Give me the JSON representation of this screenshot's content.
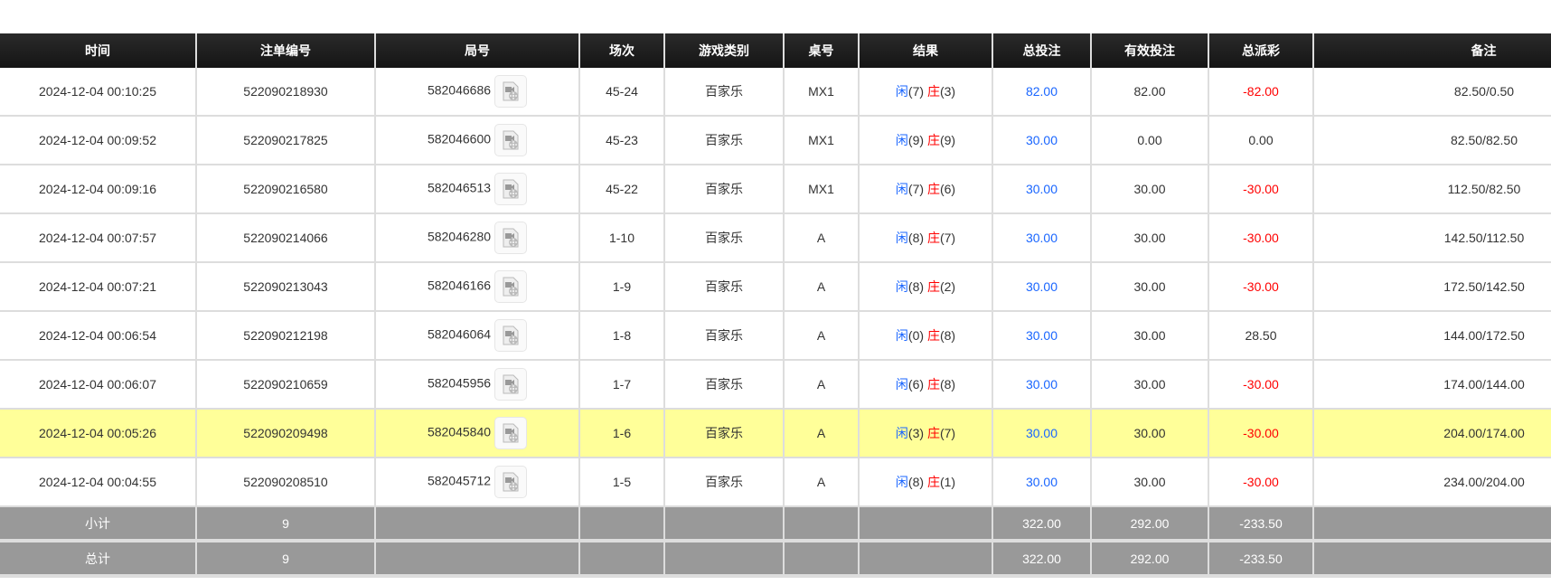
{
  "headers": [
    "时间",
    "注单编号",
    "局号",
    "场次",
    "游戏类别",
    "桌号",
    "结果",
    "总投注",
    "有效投注",
    "总派彩",
    "备注"
  ],
  "player_label": "闲",
  "banker_label": "庄",
  "colors": {
    "header_bg": "#1b1b1b",
    "highlight": "#ffff99",
    "footer_bg": "#999999",
    "blue": "#1a66ff",
    "red": "#ff0000"
  },
  "rows": [
    {
      "time": "2024-12-04 00:10:25",
      "bet_id": "522090218930",
      "round": "582046686",
      "session": "45-24",
      "game": "百家乐",
      "table": "MX1",
      "player": "(7)",
      "banker": "(3)",
      "total": "82.00",
      "valid": "82.00",
      "payout": "-82.00",
      "payout_neg": true,
      "remark": "82.50/0.50"
    },
    {
      "time": "2024-12-04 00:09:52",
      "bet_id": "522090217825",
      "round": "582046600",
      "session": "45-23",
      "game": "百家乐",
      "table": "MX1",
      "player": "(9)",
      "banker": "(9)",
      "total": "30.00",
      "valid": "0.00",
      "payout": "0.00",
      "payout_neg": false,
      "remark": "82.50/82.50"
    },
    {
      "time": "2024-12-04 00:09:16",
      "bet_id": "522090216580",
      "round": "582046513",
      "session": "45-22",
      "game": "百家乐",
      "table": "MX1",
      "player": "(7)",
      "banker": "(6)",
      "total": "30.00",
      "valid": "30.00",
      "payout": "-30.00",
      "payout_neg": true,
      "remark": "112.50/82.50"
    },
    {
      "time": "2024-12-04 00:07:57",
      "bet_id": "522090214066",
      "round": "582046280",
      "session": "1-10",
      "game": "百家乐",
      "table": "A",
      "player": "(8)",
      "banker": "(7)",
      "total": "30.00",
      "valid": "30.00",
      "payout": "-30.00",
      "payout_neg": true,
      "remark": "142.50/112.50"
    },
    {
      "time": "2024-12-04 00:07:21",
      "bet_id": "522090213043",
      "round": "582046166",
      "session": "1-9",
      "game": "百家乐",
      "table": "A",
      "player": "(8)",
      "banker": "(2)",
      "total": "30.00",
      "valid": "30.00",
      "payout": "-30.00",
      "payout_neg": true,
      "remark": "172.50/142.50"
    },
    {
      "time": "2024-12-04 00:06:54",
      "bet_id": "522090212198",
      "round": "582046064",
      "session": "1-8",
      "game": "百家乐",
      "table": "A",
      "player": "(0)",
      "banker": "(8)",
      "total": "30.00",
      "valid": "30.00",
      "payout": "28.50",
      "payout_neg": false,
      "remark": "144.00/172.50"
    },
    {
      "time": "2024-12-04 00:06:07",
      "bet_id": "522090210659",
      "round": "582045956",
      "session": "1-7",
      "game": "百家乐",
      "table": "A",
      "player": "(6)",
      "banker": "(8)",
      "total": "30.00",
      "valid": "30.00",
      "payout": "-30.00",
      "payout_neg": true,
      "remark": "174.00/144.00"
    },
    {
      "time": "2024-12-04 00:05:26",
      "bet_id": "522090209498",
      "round": "582045840",
      "session": "1-6",
      "game": "百家乐",
      "table": "A",
      "player": "(3)",
      "banker": "(7)",
      "total": "30.00",
      "valid": "30.00",
      "payout": "-30.00",
      "payout_neg": true,
      "remark": "204.00/174.00",
      "highlight": true
    },
    {
      "time": "2024-12-04 00:04:55",
      "bet_id": "522090208510",
      "round": "582045712",
      "session": "1-5",
      "game": "百家乐",
      "table": "A",
      "player": "(8)",
      "banker": "(1)",
      "total": "30.00",
      "valid": "30.00",
      "payout": "-30.00",
      "payout_neg": true,
      "remark": "234.00/204.00"
    }
  ],
  "footer": [
    {
      "label": "小计",
      "count": "9",
      "total": "322.00",
      "valid": "292.00",
      "payout": "-233.50"
    },
    {
      "label": "总计",
      "count": "9",
      "total": "322.00",
      "valid": "292.00",
      "payout": "-233.50"
    }
  ]
}
